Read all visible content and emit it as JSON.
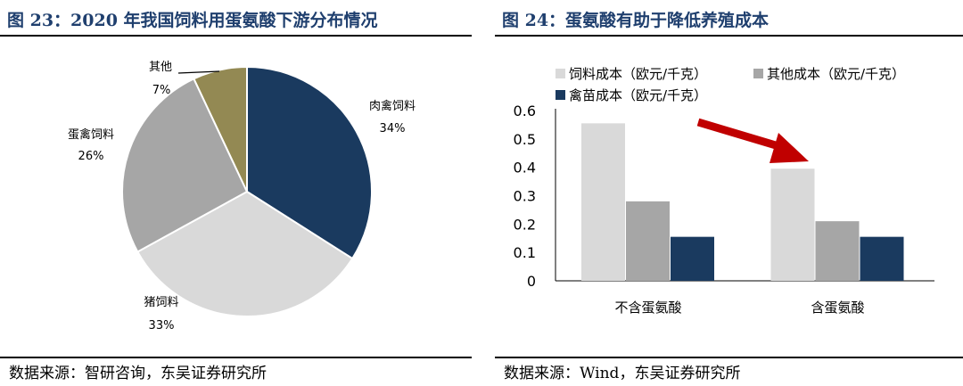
{
  "left": {
    "title": "图 23：2020 年我国饲料用蛋氨酸下游分布情况",
    "source": "数据来源：智研咨询，东吴证券研究所"
  },
  "right": {
    "title": "图 24：蛋氨酸有助于降低养殖成本",
    "source": "数据来源：Wind，东吴证券研究所"
  },
  "chart_data": [
    {
      "type": "pie",
      "title": "",
      "slices": [
        {
          "label": "肉禽饲料",
          "value": 34,
          "percent_label": "34%",
          "color": "#1a3a5f"
        },
        {
          "label": "猪饲料",
          "value": 33,
          "percent_label": "33%",
          "color": "#d9d9d9"
        },
        {
          "label": "蛋禽饲料",
          "value": 26,
          "percent_label": "26%",
          "color": "#a6a6a6"
        },
        {
          "label": "其他",
          "value": 7,
          "percent_label": "7%",
          "color": "#938953"
        }
      ]
    },
    {
      "type": "bar",
      "title": "",
      "categories": [
        "不含蛋氨酸",
        "含蛋氨酸"
      ],
      "series": [
        {
          "name": "饲料成本（欧元/千克）",
          "values": [
            0.555,
            0.395
          ],
          "color": "#d9d9d9"
        },
        {
          "name": "其他成本（欧元/千克）",
          "values": [
            0.28,
            0.21
          ],
          "color": "#a6a6a6"
        },
        {
          "name": "禽苗成本（欧元/千克）",
          "values": [
            0.155,
            0.155
          ],
          "color": "#1a3a5f"
        }
      ],
      "yticks": [
        "0",
        "0.1",
        "0.2",
        "0.3",
        "0.4",
        "0.5",
        "0.6"
      ],
      "ylim": [
        0,
        0.6
      ],
      "legend_position": "top-left",
      "annotation": "red arrow pointing down-right toward the 含蛋氨酸 group"
    }
  ]
}
